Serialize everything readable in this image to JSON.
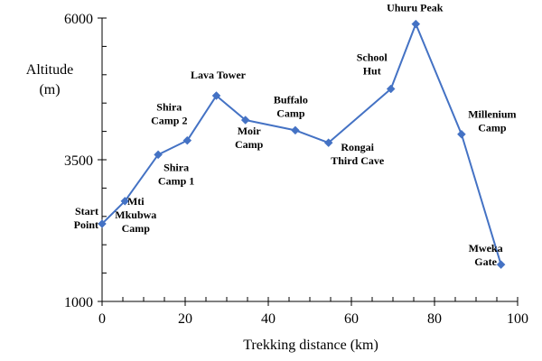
{
  "chart_data": {
    "type": "line",
    "xlabel": "Trekking distance (km)",
    "ylabel_lines": [
      "Altitude",
      "(m)"
    ],
    "xlim": [
      0,
      100
    ],
    "ylim": [
      1000,
      6000
    ],
    "x_ticks": [
      "0",
      "20",
      "40",
      "60",
      "80",
      "100"
    ],
    "x_tick_values": [
      0,
      20,
      40,
      60,
      80,
      100
    ],
    "y_ticks": [
      "1000",
      "3500",
      "6000"
    ],
    "y_tick_values": [
      1000,
      3500,
      6000
    ],
    "grid": false,
    "line_color": "#4472C4",
    "series": [
      {
        "points": [
          {
            "x": 0,
            "y": 2370,
            "label": [
              "Start",
              "Point"
            ]
          },
          {
            "x": 5.5,
            "y": 2770,
            "label": [
              "Mti",
              "Mkubwa",
              "Camp"
            ]
          },
          {
            "x": 13.5,
            "y": 3590,
            "label": [
              "Shira",
              "Camp 1"
            ]
          },
          {
            "x": 20.5,
            "y": 3840,
            "label": [
              "Shira",
              "Camp 2"
            ]
          },
          {
            "x": 27.5,
            "y": 4630,
            "label": [
              "Lava Tower"
            ]
          },
          {
            "x": 34.5,
            "y": 4200,
            "label": [
              "Moir",
              "Camp"
            ]
          },
          {
            "x": 46.5,
            "y": 4020,
            "label": [
              "Buffalo",
              "Camp"
            ]
          },
          {
            "x": 54.5,
            "y": 3800,
            "label": [
              "Rongai",
              "Third Cave"
            ]
          },
          {
            "x": 69.5,
            "y": 4750,
            "label": [
              "School",
              "Hut"
            ]
          },
          {
            "x": 75.5,
            "y": 5895,
            "label": [
              "Uhuru Peak"
            ]
          },
          {
            "x": 86.5,
            "y": 3950,
            "label": [
              "Millenium",
              "Camp"
            ]
          },
          {
            "x": 96,
            "y": 1650,
            "label": [
              "Mweka",
              "Gate"
            ]
          }
        ]
      }
    ]
  }
}
